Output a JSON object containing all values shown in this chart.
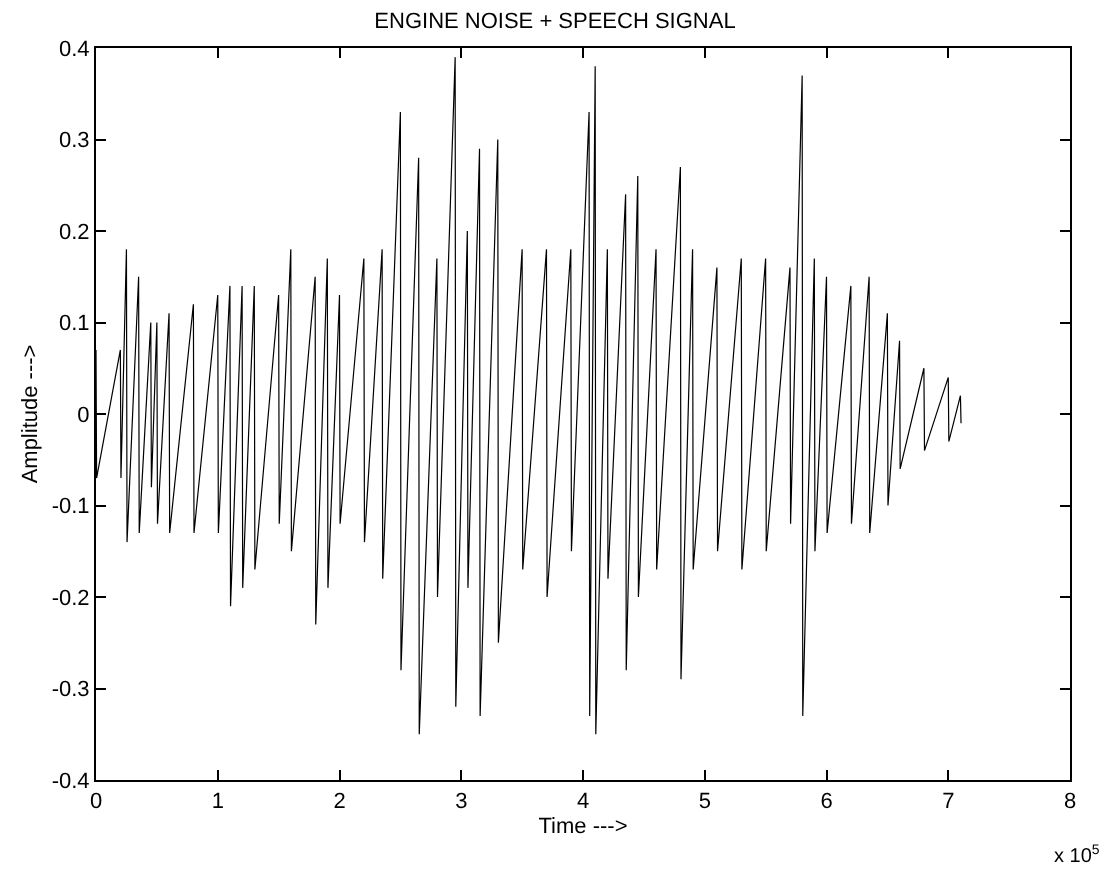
{
  "chart_data": {
    "type": "line",
    "title": "ENGINE NOISE + SPEECH SIGNAL",
    "xlabel": "Time --->",
    "ylabel": "Amplitude --->",
    "x": [
      0,
      0.005,
      0.2,
      0.205,
      0.25,
      0.255,
      0.35,
      0.355,
      0.45,
      0.455,
      0.5,
      0.505,
      0.6,
      0.605,
      0.8,
      0.805,
      1.0,
      1.005,
      1.1,
      1.105,
      1.2,
      1.205,
      1.3,
      1.305,
      1.5,
      1.505,
      1.6,
      1.605,
      1.8,
      1.805,
      1.9,
      1.905,
      2.0,
      2.005,
      2.2,
      2.205,
      2.35,
      2.355,
      2.5,
      2.505,
      2.65,
      2.655,
      2.8,
      2.805,
      2.95,
      2.955,
      3.05,
      3.055,
      3.15,
      3.155,
      3.3,
      3.305,
      3.5,
      3.505,
      3.7,
      3.705,
      3.9,
      3.905,
      4.05,
      4.055,
      4.1,
      4.105,
      4.2,
      4.205,
      4.35,
      4.355,
      4.45,
      4.455,
      4.6,
      4.605,
      4.8,
      4.805,
      4.9,
      4.905,
      5.1,
      5.105,
      5.3,
      5.305,
      5.5,
      5.505,
      5.7,
      5.705,
      5.8,
      5.805,
      5.9,
      5.905,
      6.0,
      6.005,
      6.2,
      6.205,
      6.35,
      6.355,
      6.5,
      6.505,
      6.6,
      6.605,
      6.8,
      6.805,
      7.0,
      7.005,
      7.1,
      7.105
    ],
    "series": [
      {
        "color": "#000000",
        "values": [
          0.07,
          -0.07,
          0.07,
          -0.07,
          0.18,
          -0.14,
          0.15,
          -0.13,
          0.1,
          -0.08,
          0.1,
          -0.12,
          0.11,
          -0.13,
          0.12,
          -0.13,
          0.13,
          -0.13,
          0.14,
          -0.21,
          0.14,
          -0.19,
          0.14,
          -0.17,
          0.13,
          -0.12,
          0.18,
          -0.15,
          0.15,
          -0.23,
          0.17,
          -0.19,
          0.13,
          -0.12,
          0.17,
          -0.14,
          0.18,
          -0.18,
          0.33,
          -0.28,
          0.28,
          -0.35,
          0.17,
          -0.2,
          0.39,
          -0.32,
          0.2,
          -0.19,
          0.29,
          -0.33,
          0.3,
          -0.25,
          0.18,
          -0.17,
          0.18,
          -0.2,
          0.18,
          -0.15,
          0.33,
          -0.33,
          0.38,
          -0.35,
          0.18,
          -0.18,
          0.24,
          -0.28,
          0.26,
          -0.2,
          0.18,
          -0.17,
          0.27,
          -0.29,
          0.18,
          -0.17,
          0.16,
          -0.15,
          0.17,
          -0.17,
          0.17,
          -0.15,
          0.16,
          -0.12,
          0.37,
          -0.33,
          0.17,
          -0.15,
          0.15,
          -0.13,
          0.14,
          -0.12,
          0.15,
          -0.13,
          0.11,
          -0.1,
          0.08,
          -0.06,
          0.05,
          -0.04,
          0.04,
          -0.03,
          0.02,
          -0.01
        ]
      }
    ],
    "xlim": [
      0,
      8
    ],
    "xticks": [
      0,
      1,
      2,
      3,
      4,
      5,
      6,
      7,
      8
    ],
    "ylim": [
      -0.4,
      0.4
    ],
    "yticks": [
      -0.4,
      -0.3,
      -0.2,
      -0.1,
      0,
      0.1,
      0.2,
      0.3,
      0.4
    ],
    "annotations": [
      "x 10$^{5}$"
    ],
    "marker": "none",
    "line_style": "solid"
  }
}
